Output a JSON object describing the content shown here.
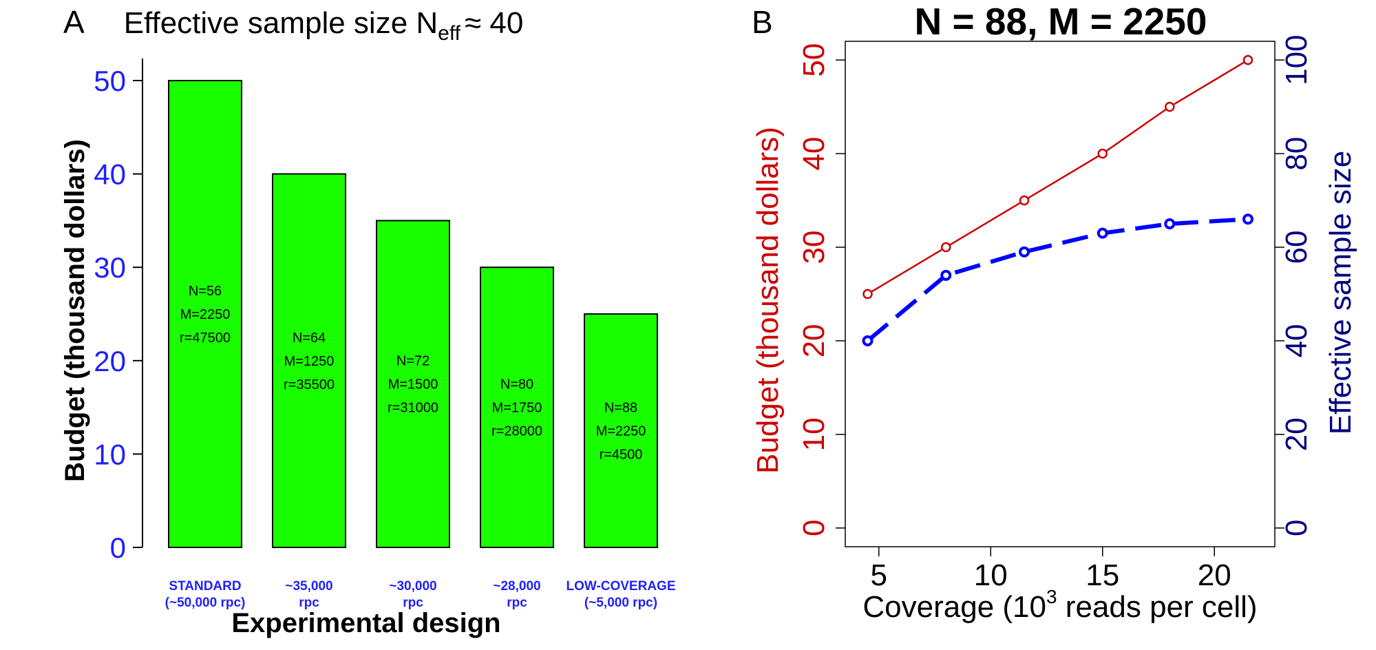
{
  "chart_data": [
    {
      "panel_label": "A",
      "type": "bar",
      "title": "Effective sample size N",
      "title_subscript": "eff",
      "title_suffix": "≈ 40",
      "xlabel": "Experimental design",
      "ylabel": "Budget (thousand dollars)",
      "ylim": [
        0,
        50
      ],
      "yticks": [
        "0",
        "10",
        "20",
        "30",
        "40",
        "50"
      ],
      "ytick_values": [
        0,
        10,
        20,
        30,
        40,
        50
      ],
      "grid": false,
      "colors": {
        "bar_fill": "#1aff00",
        "bar_stroke": "#000000",
        "tick_labels": "#1f1fff",
        "category_labels": "#1f1fff"
      },
      "categories": [
        {
          "line1": "STANDARD",
          "line2": "(~50,000 rpc)"
        },
        {
          "line1": "~35,000",
          "line2": "rpc"
        },
        {
          "line1": "~30,000",
          "line2": "rpc"
        },
        {
          "line1": "~28,000",
          "line2": "rpc"
        },
        {
          "line1": "LOW-COVERAGE",
          "line2": "(~5,000 rpc)"
        }
      ],
      "values": [
        50,
        40,
        35,
        30,
        25
      ],
      "bar_labels": [
        [
          "N=56",
          "M=2250",
          "r=47500"
        ],
        [
          "N=64",
          "M=1250",
          "r=35500"
        ],
        [
          "N=72",
          "M=1500",
          "r=31000"
        ],
        [
          "N=80",
          "M=1750",
          "r=28000"
        ],
        [
          "N=88",
          "M=2250",
          "r=4500"
        ]
      ]
    },
    {
      "panel_label": "B",
      "type": "line",
      "title": "N = 88, M = 2250",
      "xlabel": "Coverage (10",
      "xlabel_superscript": "3",
      "xlabel_suffix": " reads per cell)",
      "xlim": [
        3.5,
        22.7
      ],
      "xticks": [
        "5",
        "10",
        "15",
        "20"
      ],
      "xtick_values": [
        5,
        10,
        15,
        20
      ],
      "y_left": {
        "label": "Budget (thousand dollars)",
        "lim": [
          -2,
          52
        ],
        "ticks": [
          "0",
          "10",
          "20",
          "30",
          "40",
          "50"
        ],
        "tick_values": [
          0,
          10,
          20,
          30,
          40,
          50
        ],
        "color": "#cc0000"
      },
      "y_right": {
        "label": "Effective sample size",
        "lim": [
          -4,
          104
        ],
        "ticks": [
          "0",
          "20",
          "40",
          "60",
          "80",
          "100"
        ],
        "tick_values": [
          0,
          20,
          40,
          60,
          80,
          100
        ],
        "color": "#000080"
      },
      "grid": false,
      "x": [
        4.5,
        8,
        11.5,
        15,
        18,
        21.5
      ],
      "series": [
        {
          "axis": "left",
          "values": [
            25,
            30,
            35,
            40,
            45,
            50
          ],
          "color": "#cc0000",
          "style": "solid",
          "marker": "open-circle"
        },
        {
          "axis": "right",
          "values": [
            40,
            54,
            59,
            63,
            65,
            66
          ],
          "color": "#0000ff",
          "style": "dashed",
          "marker": "open-circle"
        }
      ]
    }
  ]
}
